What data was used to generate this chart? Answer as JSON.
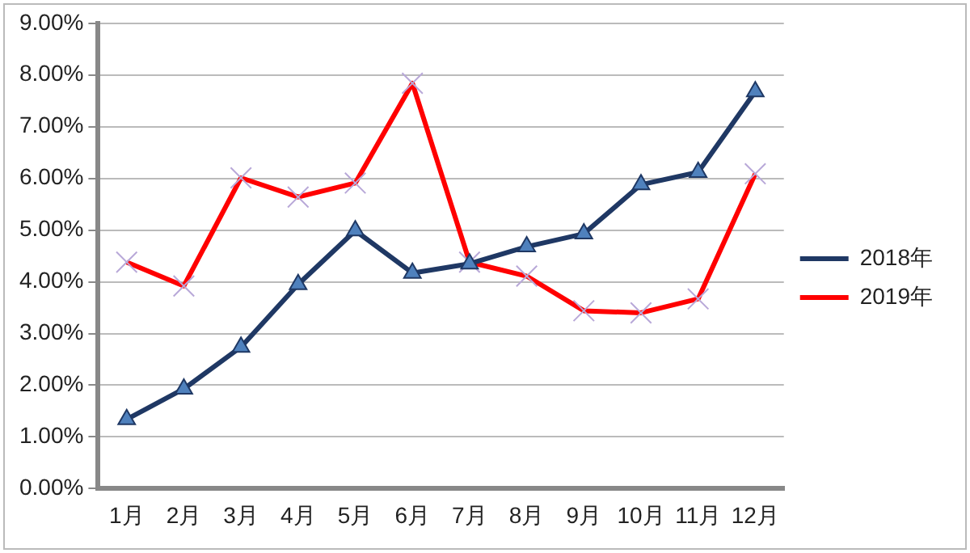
{
  "chart_data": {
    "type": "line",
    "categories": [
      "1月",
      "2月",
      "3月",
      "4月",
      "5月",
      "6月",
      "7月",
      "8月",
      "9月",
      "10月",
      "11月",
      "12月"
    ],
    "series": [
      {
        "name": "2018年",
        "color": "#1f3864",
        "marker": "triangle",
        "values": [
          1.34,
          1.93,
          2.74,
          3.95,
          4.99,
          4.17,
          4.35,
          4.68,
          4.93,
          5.88,
          6.12,
          7.68
        ]
      },
      {
        "name": "2019年",
        "color": "#ff0000",
        "marker": "cross",
        "values": [
          4.38,
          3.92,
          6.01,
          5.64,
          5.91,
          7.84,
          4.38,
          4.11,
          3.44,
          3.4,
          3.67,
          6.09
        ]
      }
    ],
    "ylim": [
      0,
      9
    ],
    "yticks": [
      {
        "value": 0,
        "label": "0.00%"
      },
      {
        "value": 1,
        "label": "1.00%"
      },
      {
        "value": 2,
        "label": "2.00%"
      },
      {
        "value": 3,
        "label": "3.00%"
      },
      {
        "value": 4,
        "label": "4.00%"
      },
      {
        "value": 5,
        "label": "5.00%"
      },
      {
        "value": 6,
        "label": "6.00%"
      },
      {
        "value": 7,
        "label": "7.00%"
      },
      {
        "value": 8,
        "label": "8.00%"
      },
      {
        "value": 9,
        "label": "9.00%"
      }
    ],
    "grid": "y",
    "legend": "right",
    "line_style": "solid"
  }
}
